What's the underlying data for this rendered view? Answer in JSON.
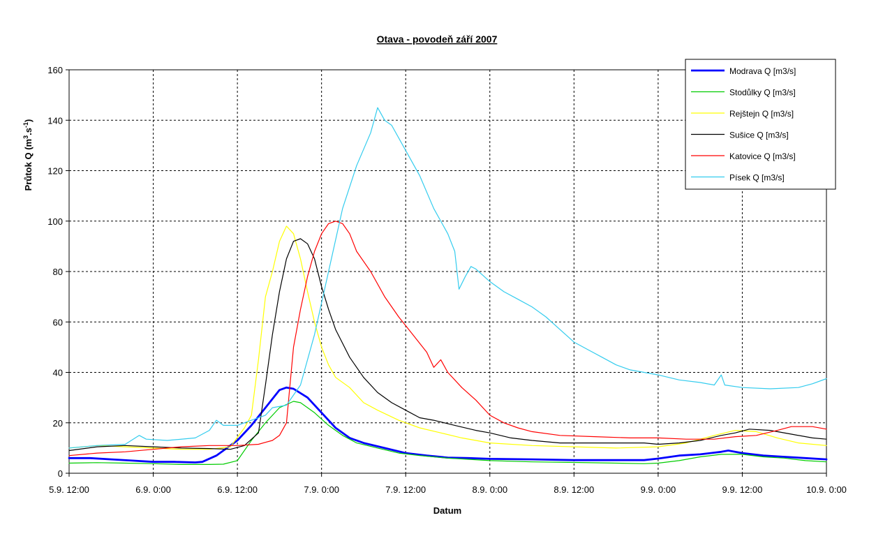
{
  "chart_data": {
    "type": "line",
    "title": "Otava - povodeň září 2007",
    "xlabel": "Datum",
    "ylabel": "Průtok Q (m",
    "ylabel_sup1": "3",
    "ylabel_mid": ".s",
    "ylabel_sup2": "-1",
    "ylabel_end": ")",
    "xlim": [
      0,
      108
    ],
    "ylim": [
      0,
      160
    ],
    "x_ticks": [
      {
        "x": 0,
        "label": "5.9. 12:00"
      },
      {
        "x": 12,
        "label": "6.9. 0:00"
      },
      {
        "x": 24,
        "label": "6.9. 12:00"
      },
      {
        "x": 36,
        "label": "7.9. 0:00"
      },
      {
        "x": 48,
        "label": "7.9. 12:00"
      },
      {
        "x": 60,
        "label": "8.9. 0:00"
      },
      {
        "x": 72,
        "label": "8.9. 12:00"
      },
      {
        "x": 84,
        "label": "9.9. 0:00"
      },
      {
        "x": 96,
        "label": "9.9. 12:00"
      },
      {
        "x": 108,
        "label": "10.9. 0:00"
      }
    ],
    "y_ticks": [
      0,
      20,
      40,
      60,
      80,
      100,
      120,
      140,
      160
    ],
    "grid": true,
    "legend_position": "top-right",
    "series": [
      {
        "name": "Modrava Q [m3/s]",
        "color": "#0000ff",
        "width": 2.8,
        "points": [
          [
            0,
            6
          ],
          [
            3,
            6
          ],
          [
            6,
            5.5
          ],
          [
            9,
            5
          ],
          [
            12,
            4.5
          ],
          [
            15,
            4.5
          ],
          [
            18,
            4.3
          ],
          [
            19,
            4.5
          ],
          [
            21,
            7
          ],
          [
            24,
            13
          ],
          [
            26,
            19
          ],
          [
            28,
            26
          ],
          [
            30,
            33
          ],
          [
            31,
            34
          ],
          [
            32,
            33.5
          ],
          [
            34,
            30
          ],
          [
            36,
            24
          ],
          [
            38,
            18
          ],
          [
            40,
            14
          ],
          [
            42,
            12
          ],
          [
            45,
            10
          ],
          [
            48,
            8
          ],
          [
            51,
            7
          ],
          [
            54,
            6.2
          ],
          [
            57,
            6
          ],
          [
            60,
            5.7
          ],
          [
            66,
            5.5
          ],
          [
            72,
            5.2
          ],
          [
            78,
            5.2
          ],
          [
            82,
            5.2
          ],
          [
            84,
            5.8
          ],
          [
            87,
            7
          ],
          [
            90,
            7.5
          ],
          [
            93,
            8.5
          ],
          [
            94,
            9
          ],
          [
            96,
            8
          ],
          [
            99,
            7
          ],
          [
            102,
            6.5
          ],
          [
            105,
            6
          ],
          [
            108,
            5.5
          ]
        ]
      },
      {
        "name": "Stodůlky Q [m3/s]",
        "color": "#00cc00",
        "width": 1.2,
        "points": [
          [
            0,
            4
          ],
          [
            4,
            4.2
          ],
          [
            8,
            4
          ],
          [
            12,
            3.8
          ],
          [
            16,
            3.5
          ],
          [
            20,
            3.5
          ],
          [
            22,
            3.6
          ],
          [
            24,
            5
          ],
          [
            26,
            13
          ],
          [
            28,
            20
          ],
          [
            30,
            26
          ],
          [
            32,
            28.5
          ],
          [
            33,
            28
          ],
          [
            35,
            24
          ],
          [
            37,
            19
          ],
          [
            39,
            15
          ],
          [
            41,
            12
          ],
          [
            44,
            10
          ],
          [
            47,
            8
          ],
          [
            50,
            7
          ],
          [
            54,
            6
          ],
          [
            60,
            5
          ],
          [
            66,
            4.5
          ],
          [
            72,
            4.3
          ],
          [
            78,
            4
          ],
          [
            82,
            3.8
          ],
          [
            84,
            4
          ],
          [
            87,
            5
          ],
          [
            90,
            6.5
          ],
          [
            93,
            7.5
          ],
          [
            96,
            7.5
          ],
          [
            99,
            6.5
          ],
          [
            102,
            6
          ],
          [
            105,
            5
          ],
          [
            108,
            4.5
          ]
        ]
      },
      {
        "name": "Rejštejn Q [m3/s]",
        "color": "#ffff00",
        "width": 1.2,
        "points": [
          [
            0,
            10
          ],
          [
            4,
            11
          ],
          [
            8,
            10.5
          ],
          [
            12,
            10
          ],
          [
            16,
            9.5
          ],
          [
            20,
            9.5
          ],
          [
            23,
            10.5
          ],
          [
            25,
            18
          ],
          [
            26,
            23
          ],
          [
            27,
            45
          ],
          [
            28,
            70
          ],
          [
            29,
            80
          ],
          [
            30,
            92
          ],
          [
            31,
            98
          ],
          [
            32,
            95
          ],
          [
            33,
            85
          ],
          [
            34,
            72
          ],
          [
            35,
            60
          ],
          [
            36,
            50
          ],
          [
            37,
            43
          ],
          [
            38,
            38
          ],
          [
            40,
            34
          ],
          [
            42,
            28
          ],
          [
            44,
            25
          ],
          [
            47,
            21
          ],
          [
            50,
            18
          ],
          [
            53,
            16
          ],
          [
            56,
            14
          ],
          [
            60,
            12
          ],
          [
            66,
            11
          ],
          [
            72,
            10.5
          ],
          [
            78,
            10
          ],
          [
            84,
            10.5
          ],
          [
            88,
            12
          ],
          [
            92,
            15
          ],
          [
            95,
            17
          ],
          [
            98,
            16.5
          ],
          [
            101,
            14
          ],
          [
            104,
            12
          ],
          [
            108,
            11
          ]
        ]
      },
      {
        "name": "Sušice Q [m3/s]",
        "color": "#000000",
        "width": 1.2,
        "points": [
          [
            0,
            9
          ],
          [
            4,
            10.5
          ],
          [
            8,
            11
          ],
          [
            12,
            10.5
          ],
          [
            16,
            10
          ],
          [
            20,
            9.8
          ],
          [
            23,
            9.5
          ],
          [
            25,
            11
          ],
          [
            27,
            16
          ],
          [
            28,
            35
          ],
          [
            29,
            55
          ],
          [
            30,
            72
          ],
          [
            31,
            85
          ],
          [
            32,
            92
          ],
          [
            33,
            93
          ],
          [
            34,
            91
          ],
          [
            35,
            85
          ],
          [
            36,
            74
          ],
          [
            37,
            65
          ],
          [
            38,
            57
          ],
          [
            40,
            46
          ],
          [
            42,
            38
          ],
          [
            44,
            32
          ],
          [
            46,
            28
          ],
          [
            48,
            25
          ],
          [
            50,
            22
          ],
          [
            52,
            21
          ],
          [
            55,
            19
          ],
          [
            58,
            17
          ],
          [
            60,
            16
          ],
          [
            63,
            14
          ],
          [
            66,
            13
          ],
          [
            70,
            12
          ],
          [
            76,
            12
          ],
          [
            82,
            12
          ],
          [
            84,
            11.5
          ],
          [
            87,
            12
          ],
          [
            90,
            13
          ],
          [
            93,
            15
          ],
          [
            95,
            16
          ],
          [
            97,
            17.5
          ],
          [
            100,
            17
          ],
          [
            103,
            15.5
          ],
          [
            106,
            14
          ],
          [
            108,
            13.5
          ]
        ]
      },
      {
        "name": "Katovice Q [m3/s]",
        "color": "#ff0000",
        "width": 1.2,
        "points": [
          [
            0,
            7
          ],
          [
            4,
            8
          ],
          [
            8,
            8.5
          ],
          [
            12,
            9.5
          ],
          [
            16,
            10.5
          ],
          [
            20,
            11
          ],
          [
            24,
            11
          ],
          [
            27,
            11.5
          ],
          [
            29,
            13
          ],
          [
            30,
            15
          ],
          [
            31,
            20
          ],
          [
            32,
            50
          ],
          [
            33,
            65
          ],
          [
            34,
            78
          ],
          [
            35,
            88
          ],
          [
            36,
            95
          ],
          [
            37,
            99
          ],
          [
            38,
            100
          ],
          [
            39,
            99
          ],
          [
            40,
            95
          ],
          [
            41,
            88
          ],
          [
            43,
            80
          ],
          [
            45,
            70
          ],
          [
            47,
            62
          ],
          [
            49,
            55
          ],
          [
            51,
            48
          ],
          [
            52,
            42
          ],
          [
            53,
            45
          ],
          [
            54,
            40
          ],
          [
            56,
            34
          ],
          [
            58,
            29
          ],
          [
            60,
            23
          ],
          [
            62,
            20
          ],
          [
            64,
            18
          ],
          [
            66,
            16.5
          ],
          [
            70,
            15
          ],
          [
            75,
            14.5
          ],
          [
            80,
            14
          ],
          [
            84,
            14
          ],
          [
            88,
            13.5
          ],
          [
            92,
            13.5
          ],
          [
            95,
            14.5
          ],
          [
            98,
            15
          ],
          [
            101,
            17
          ],
          [
            103,
            18.5
          ],
          [
            106,
            18.5
          ],
          [
            108,
            17.5
          ]
        ]
      },
      {
        "name": "Písek Q [m3/s]",
        "color": "#33ccee",
        "width": 1.2,
        "points": [
          [
            0,
            10
          ],
          [
            4,
            11
          ],
          [
            8,
            11.5
          ],
          [
            10,
            15
          ],
          [
            11,
            13.5
          ],
          [
            14,
            13
          ],
          [
            18,
            14
          ],
          [
            20,
            17
          ],
          [
            21,
            21
          ],
          [
            22,
            19
          ],
          [
            24,
            19
          ],
          [
            26,
            21
          ],
          [
            28,
            23
          ],
          [
            29,
            26
          ],
          [
            31,
            27
          ],
          [
            33,
            35
          ],
          [
            35,
            55
          ],
          [
            37,
            80
          ],
          [
            39,
            105
          ],
          [
            41,
            122
          ],
          [
            43,
            135
          ],
          [
            44,
            145
          ],
          [
            45,
            140
          ],
          [
            46,
            138
          ],
          [
            48,
            128
          ],
          [
            50,
            118
          ],
          [
            52,
            105
          ],
          [
            54,
            95
          ],
          [
            55,
            88
          ],
          [
            55.6,
            73
          ],
          [
            56.5,
            78
          ],
          [
            57.3,
            82
          ],
          [
            58,
            81
          ],
          [
            60,
            76
          ],
          [
            62,
            72
          ],
          [
            64,
            69
          ],
          [
            66,
            66
          ],
          [
            68,
            62
          ],
          [
            70,
            57
          ],
          [
            72,
            52
          ],
          [
            74,
            49
          ],
          [
            76,
            46
          ],
          [
            78,
            43
          ],
          [
            80,
            41
          ],
          [
            84,
            39
          ],
          [
            87,
            37
          ],
          [
            90,
            36
          ],
          [
            92,
            35
          ],
          [
            93,
            39
          ],
          [
            93.5,
            35
          ],
          [
            96,
            34
          ],
          [
            100,
            33.5
          ],
          [
            104,
            34
          ],
          [
            106,
            35.5
          ],
          [
            108,
            37.5
          ]
        ]
      }
    ]
  }
}
